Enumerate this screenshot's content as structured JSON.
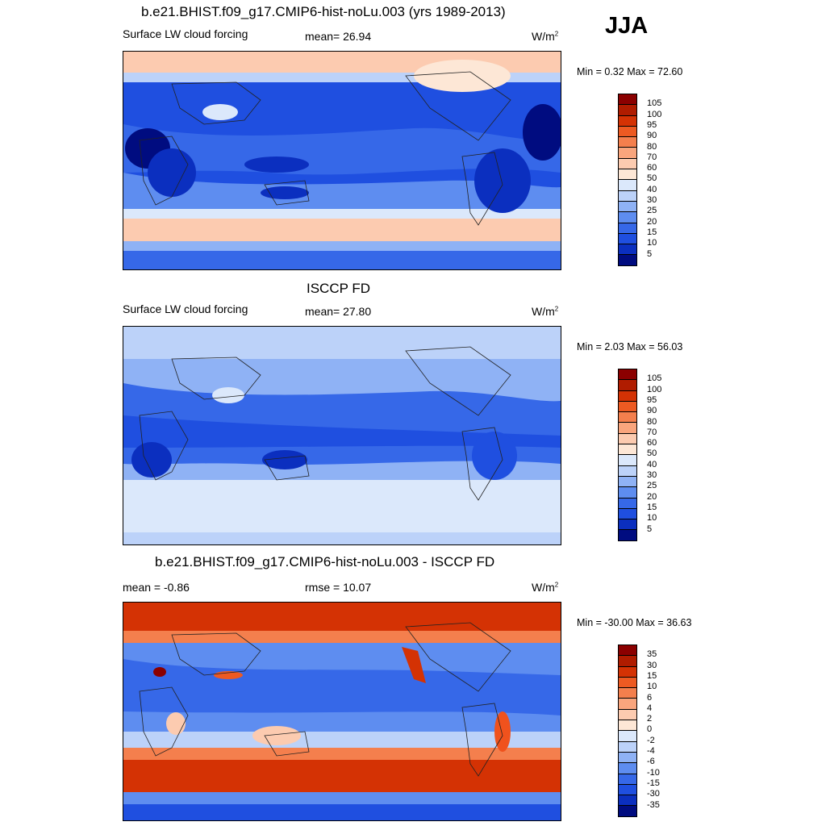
{
  "season": "JJA",
  "colors": {
    "dark_blue": "#000c80",
    "mid_blue": "#1f4fe0",
    "light_blue": "#8fb2f5",
    "pale_blue": "#dbe8fb",
    "cream": "#fde7d6",
    "peach": "#fccbb0",
    "orange_red": "#f0521d",
    "dark_red": "#8b0000"
  },
  "panels": [
    {
      "title": "b.e21.BHIST.f09_g17.CMIP6-hist-noLu.003 (yrs 1989-2013)",
      "left_label": "Surface LW cloud forcing",
      "center_label": "mean=  26.94",
      "units": "W/m",
      "units_sup": "2",
      "minmax": "Min =   0.32 Max =  72.60",
      "colorbar_labels": [
        "105",
        "100",
        "95",
        "90",
        "80",
        "70",
        "60",
        "50",
        "40",
        "30",
        "25",
        "20",
        "15",
        "10",
        "5"
      ],
      "colorbar_colors": [
        "#8b0000",
        "#b01c00",
        "#d43204",
        "#ed5a22",
        "#f47f4d",
        "#f9a57d",
        "#fccbb0",
        "#fde7d6",
        "#dbe8fb",
        "#bcd2f9",
        "#8fb2f5",
        "#5e8df0",
        "#3668e8",
        "#1f4fe0",
        "#0b2fbf",
        "#000c80"
      ]
    },
    {
      "title": "ISCCP FD",
      "left_label": "Surface LW cloud forcing",
      "center_label": "mean=  27.80",
      "units": "W/m",
      "units_sup": "2",
      "minmax": "Min =   2.03 Max =  56.03",
      "colorbar_labels": [
        "105",
        "100",
        "95",
        "90",
        "80",
        "70",
        "60",
        "50",
        "40",
        "30",
        "25",
        "20",
        "15",
        "10",
        "5"
      ],
      "colorbar_colors": [
        "#8b0000",
        "#b01c00",
        "#d43204",
        "#ed5a22",
        "#f47f4d",
        "#f9a57d",
        "#fccbb0",
        "#fde7d6",
        "#dbe8fb",
        "#bcd2f9",
        "#8fb2f5",
        "#5e8df0",
        "#3668e8",
        "#1f4fe0",
        "#0b2fbf",
        "#000c80"
      ]
    },
    {
      "title": "b.e21.BHIST.f09_g17.CMIP6-hist-noLu.003 - ISCCP FD",
      "left_label": "mean =  -0.86",
      "center_label": "rmse =  10.07",
      "units": "W/m",
      "units_sup": "2",
      "minmax": "Min = -30.00 Max =  36.63",
      "colorbar_labels": [
        "35",
        "30",
        "15",
        "10",
        "6",
        "4",
        "2",
        "0",
        "-2",
        "-4",
        "-6",
        "-10",
        "-15",
        "-30",
        "-35"
      ],
      "colorbar_colors": [
        "#8b0000",
        "#b01c00",
        "#d43204",
        "#ed5a22",
        "#f47f4d",
        "#f9a57d",
        "#fccbb0",
        "#fde7d6",
        "#dbe8fb",
        "#bcd2f9",
        "#8fb2f5",
        "#5e8df0",
        "#3668e8",
        "#1f4fe0",
        "#0b2fbf",
        "#000c80"
      ]
    }
  ]
}
